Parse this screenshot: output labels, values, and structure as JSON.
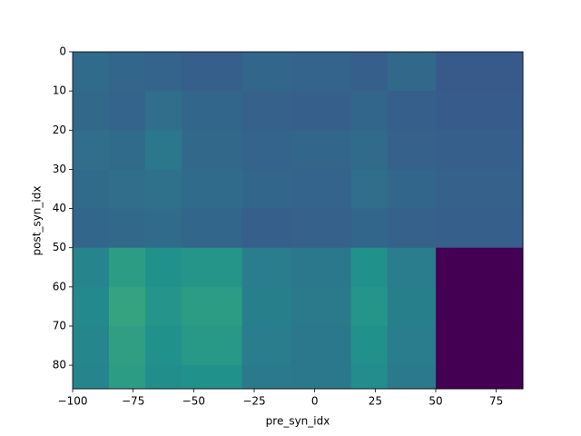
{
  "chart_data": {
    "type": "heatmap",
    "x_label": "pre_syn_idx",
    "y_label": "post_syn_idx",
    "xlim": [
      -100,
      86
    ],
    "ylim": [
      86,
      0
    ],
    "xticks": [
      {
        "value": -100,
        "label": "−100"
      },
      {
        "value": -75,
        "label": "−75"
      },
      {
        "value": -50,
        "label": "−50"
      },
      {
        "value": -25,
        "label": "−25"
      },
      0,
      25,
      50,
      75
    ],
    "yticks": [
      0,
      10,
      20,
      30,
      40,
      50,
      60,
      70,
      80
    ],
    "x_edges": [
      -100,
      -85,
      -70,
      -55,
      -30,
      -10,
      15,
      30,
      50,
      86
    ],
    "y_edges": [
      0,
      10,
      20,
      30,
      40,
      50,
      60,
      70,
      80,
      86
    ],
    "colormap": [
      "#440154",
      "#3b528b",
      "#21918c",
      "#5ec962",
      "#fde725"
    ],
    "z": [
      [
        0.35,
        0.33,
        0.32,
        0.3,
        0.33,
        0.32,
        0.3,
        0.34,
        0.28
      ],
      [
        0.34,
        0.32,
        0.36,
        0.33,
        0.31,
        0.3,
        0.33,
        0.3,
        0.29
      ],
      [
        0.36,
        0.35,
        0.4,
        0.34,
        0.32,
        0.33,
        0.35,
        0.31,
        0.3
      ],
      [
        0.35,
        0.36,
        0.37,
        0.35,
        0.33,
        0.32,
        0.36,
        0.33,
        0.31
      ],
      [
        0.33,
        0.34,
        0.35,
        0.33,
        0.3,
        0.31,
        0.33,
        0.31,
        0.3
      ],
      [
        0.45,
        0.55,
        0.5,
        0.52,
        0.42,
        0.4,
        0.5,
        0.42,
        0
      ],
      [
        0.47,
        0.58,
        0.52,
        0.55,
        0.43,
        0.41,
        0.52,
        0.43,
        0
      ],
      [
        0.46,
        0.56,
        0.5,
        0.53,
        0.42,
        0.4,
        0.5,
        0.42,
        0
      ],
      [
        0.45,
        0.55,
        0.49,
        0.5,
        0.41,
        0.4,
        0.48,
        0.41,
        0
      ]
    ]
  }
}
